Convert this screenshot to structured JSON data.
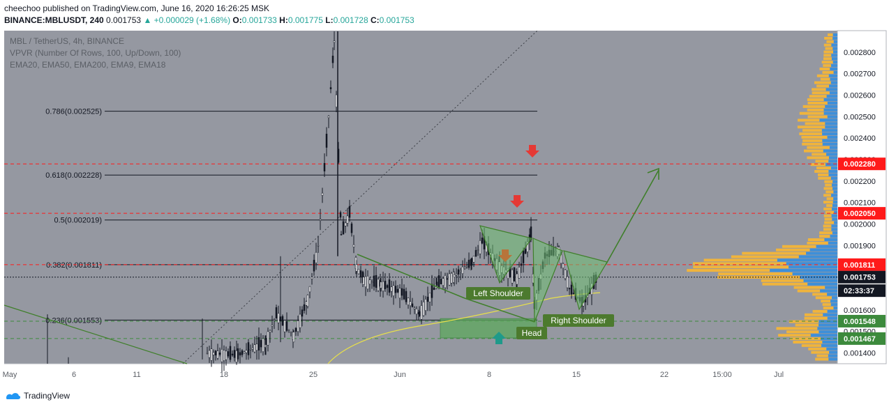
{
  "header": {
    "published": "cheechoo published on TradingView.com, June 16, 2020 16:26:25 MSK",
    "symbol": "BINANCE:MBLUSDT, 240",
    "last": "0.001753",
    "change": "▲ +0.000029 (+1.68%)",
    "o_label": "O:",
    "o": "0.001733",
    "h_label": "H:",
    "h": "0.001775",
    "l_label": "L:",
    "l": "0.001728",
    "c_label": "C:",
    "c": "0.001753"
  },
  "legend": {
    "line1": "MBL / TetherUS, 4h, BINANCE",
    "line2": "VPVR (Number Of Rows, 100, Up/Down, 100)",
    "line3": "EMA20, EMA50, EMA200, EMA9, EMA18"
  },
  "footer": {
    "brand": "TradingView"
  },
  "colors": {
    "background": "#9598a1",
    "candle": "#131722",
    "pattern_fill": "#6fbf73",
    "pattern_stroke": "#3f7f2a",
    "label_bg": "#4c7a2e",
    "resistance": "#ff1a1a",
    "support": "#3c8a3c",
    "volume_up": "#3d8fd9",
    "volume_down": "#f0b43c",
    "ema": "#e8e04a"
  },
  "chart_data": {
    "type": "candlestick",
    "title": "MBL / TetherUS, 4h, BINANCE",
    "ylim": [
      0.00135,
      0.0029
    ],
    "y_ticks": [
      "0.002800",
      "0.002700",
      "0.002600",
      "0.002500",
      "0.002400",
      "0.002300",
      "0.002200",
      "0.002100",
      "0.002000",
      "0.001900",
      "0.001600",
      "0.001500",
      "0.001400"
    ],
    "x_ticks": [
      "May",
      "6",
      "11",
      "18",
      "25",
      "Jun",
      "8",
      "15",
      "22",
      "15:00",
      "Jul"
    ],
    "price_labels": [
      {
        "text": "0.002280",
        "value": 0.00228,
        "color": "#ff1a1a",
        "text_color": "#ffffff"
      },
      {
        "text": "0.002050",
        "value": 0.00205,
        "color": "#ff1a1a",
        "text_color": "#ffffff"
      },
      {
        "text": "0.001811",
        "value": 0.001811,
        "color": "#ff1a1a",
        "text_color": "#ffffff"
      },
      {
        "text": "0.001753",
        "value": 0.001753,
        "color": "#131722",
        "text_color": "#ffffff"
      },
      {
        "text": "02:33:37",
        "value": 0.00169,
        "color": "#131722",
        "text_color": "#ffffff"
      },
      {
        "text": "0.001548",
        "value": 0.001548,
        "color": "#3c8a3c",
        "text_color": "#ffffff"
      },
      {
        "text": "0.001467",
        "value": 0.001467,
        "color": "#3c8a3c",
        "text_color": "#ffffff"
      }
    ],
    "fibonacci": [
      {
        "label": "0.786(0.002525)",
        "value": 0.002525
      },
      {
        "label": "0.618(0.002228)",
        "value": 0.002228
      },
      {
        "label": "0.5(0.002019)",
        "value": 0.002019
      },
      {
        "label": "0.382(0.001811)",
        "value": 0.001811
      },
      {
        "label": "0.236(0.001553)",
        "value": 0.001553
      }
    ],
    "resistance_lines": [
      0.00228,
      0.00205,
      0.001811
    ],
    "support_lines": [
      0.001548,
      0.001467
    ],
    "current_price": 0.001753,
    "pattern_labels": [
      "Left Shoulder",
      "Head",
      "Right Shoulder"
    ],
    "price_path": [
      {
        "d": "May 16",
        "p": 0.0014
      },
      {
        "d": "May 20",
        "p": 0.00139
      },
      {
        "d": "May 22",
        "p": 0.00145
      },
      {
        "d": "May 23",
        "p": 0.00158
      },
      {
        "d": "May 24",
        "p": 0.00148
      },
      {
        "d": "May 25",
        "p": 0.00165
      },
      {
        "d": "May 26",
        "p": 0.0019
      },
      {
        "d": "May 26",
        "p": 0.0025
      },
      {
        "d": "May 27",
        "p": 0.00285
      },
      {
        "d": "May 27",
        "p": 0.00195
      },
      {
        "d": "May 28",
        "p": 0.00205
      },
      {
        "d": "May 29",
        "p": 0.0018
      },
      {
        "d": "May 30",
        "p": 0.00174
      },
      {
        "d": "May 31",
        "p": 0.00172
      },
      {
        "d": "Jun 2",
        "p": 0.00168
      },
      {
        "d": "Jun 3",
        "p": 0.00158
      },
      {
        "d": "Jun 4",
        "p": 0.00172
      },
      {
        "d": "Jun 5",
        "p": 0.00176
      },
      {
        "d": "Jun 6",
        "p": 0.00182
      },
      {
        "d": "Jun 7",
        "p": 0.00192
      },
      {
        "d": "Jun 8",
        "p": 0.0018
      },
      {
        "d": "Jun 9",
        "p": 0.00175
      },
      {
        "d": "Jun 10",
        "p": 0.0019
      },
      {
        "d": "Jun 11",
        "p": 0.00195
      },
      {
        "d": "Jun 11",
        "p": 0.00162
      },
      {
        "d": "Jun 12",
        "p": 0.00185
      },
      {
        "d": "Jun 13",
        "p": 0.00188
      },
      {
        "d": "Jun 14",
        "p": 0.0017
      },
      {
        "d": "Jun 15",
        "p": 0.00163
      },
      {
        "d": "Jun 16",
        "p": 0.001753
      }
    ]
  }
}
